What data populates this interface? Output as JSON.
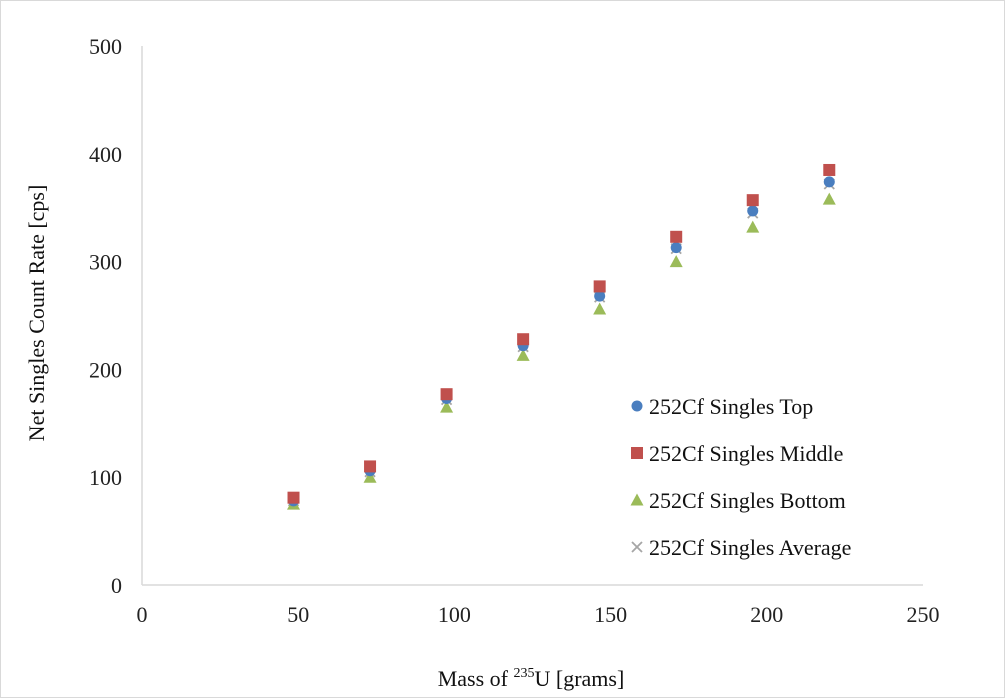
{
  "chart_data": {
    "type": "scatter",
    "title": "",
    "xlabel": {
      "prefix": "Mass of ",
      "superscript": "235",
      "suffix": "U [grams]"
    },
    "ylabel": "Net Singles Count Rate [cps]",
    "xlim": [
      0,
      250
    ],
    "ylim": [
      0,
      500
    ],
    "x_ticks": [
      "0",
      "50",
      "100",
      "150",
      "200",
      "250"
    ],
    "y_ticks": [
      "0",
      "100",
      "200",
      "300",
      "400",
      "500"
    ],
    "grid": false,
    "legend_position": "right",
    "series": [
      {
        "name": "252Cf Singles Top",
        "marker": "circle",
        "color": "#4a7ebf",
        "x": [
          48.5,
          73,
          97.5,
          122,
          146.5,
          171,
          195.5,
          220
        ],
        "y": [
          78,
          106,
          173,
          222,
          268,
          313,
          347,
          374
        ]
      },
      {
        "name": "252Cf Singles Middle",
        "marker": "square",
        "color": "#c0504d",
        "x": [
          48.5,
          73,
          97.5,
          122,
          146.5,
          171,
          195.5,
          220
        ],
        "y": [
          81,
          110,
          177,
          228,
          277,
          323,
          357,
          385
        ]
      },
      {
        "name": "252Cf Singles Bottom",
        "marker": "triangle",
        "color": "#9bbb59",
        "x": [
          48.5,
          73,
          97.5,
          122,
          146.5,
          171,
          195.5,
          220
        ],
        "y": [
          75,
          100,
          165,
          213,
          256,
          300,
          332,
          358
        ]
      },
      {
        "name": "252Cf Singles Average",
        "marker": "x",
        "color": "#a6a6a6",
        "x": [
          48.5,
          73,
          97.5,
          122,
          146.5,
          171,
          195.5,
          220
        ],
        "y": [
          78,
          105,
          172,
          221,
          267,
          312,
          345,
          372
        ]
      }
    ]
  }
}
